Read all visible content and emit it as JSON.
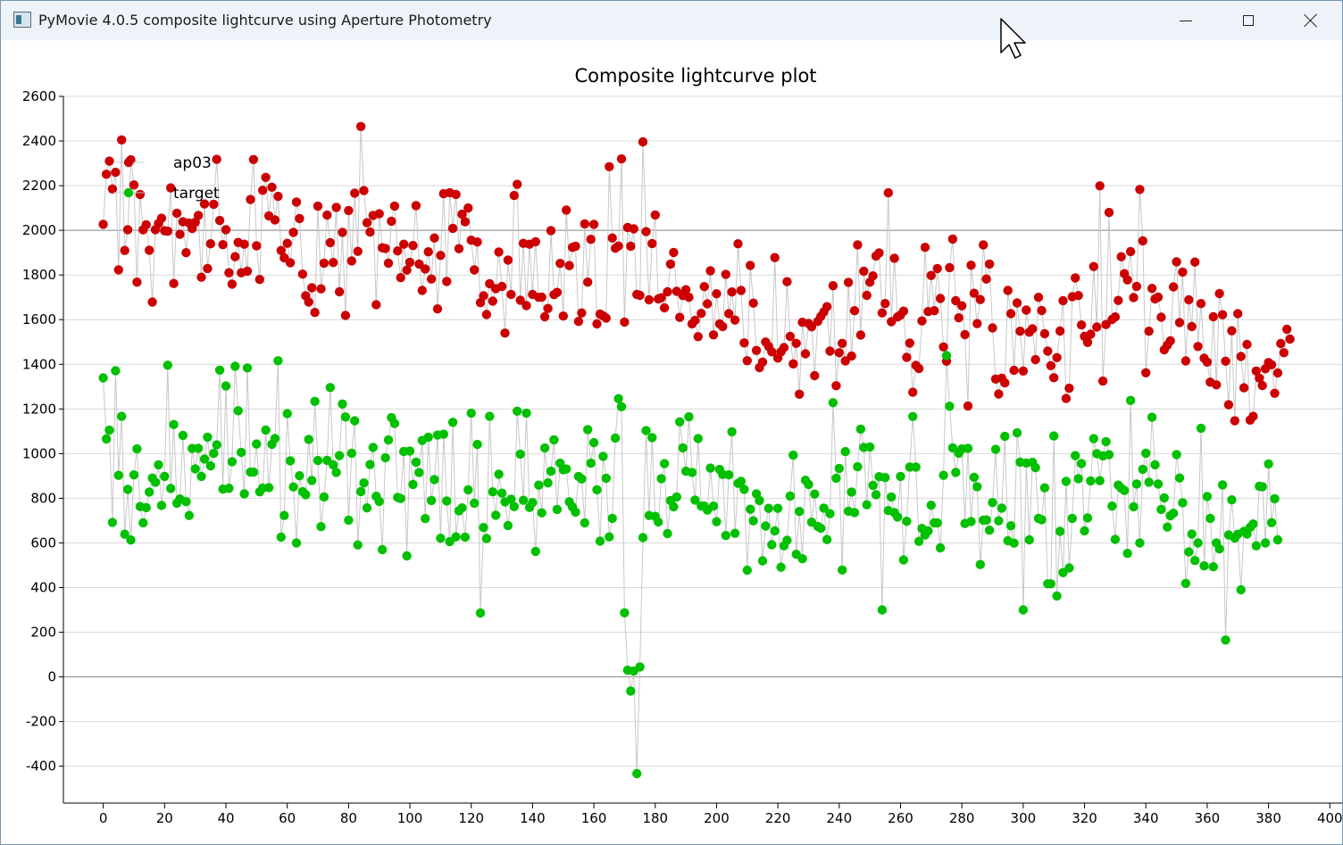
{
  "window": {
    "title": "PyMovie 4.0.5 composite lightcurve using Aperture Photometry",
    "icon": "app-icon",
    "controls": {
      "minimize": "minimize-icon",
      "maximize": "maximize-icon",
      "close": "close-icon"
    }
  },
  "chart_data": {
    "type": "scatter",
    "title": "Composite lightcurve plot",
    "xlabel": "",
    "ylabel": "",
    "xlim": [
      -13,
      404
    ],
    "ylim": [
      -565,
      2600
    ],
    "x_ticks": [
      "0",
      "20",
      "40",
      "60",
      "80",
      "100",
      "120",
      "140",
      "160",
      "180",
      "200",
      "220",
      "240",
      "260",
      "280",
      "300",
      "320",
      "340",
      "360",
      "380",
      "400"
    ],
    "y_ticks": [
      "-400",
      "-200",
      "0",
      "200",
      "400",
      "600",
      "800",
      "1000",
      "1200",
      "1400",
      "1600",
      "1800",
      "2000",
      "2200",
      "2400",
      "2600"
    ],
    "grid": true,
    "connect_points": true,
    "legend_placement": "top-left",
    "reference_lines": [
      0,
      2000
    ],
    "colors": {
      "ap03": "#cc0000",
      "target": "#00c000",
      "connector": "#c8c8c8",
      "grid": "#d9d9d9",
      "axis": "#000000"
    },
    "series": [
      {
        "name": "ap03",
        "color": "#cc0000",
        "x_start": 0,
        "values": [
          2027,
          2251,
          2310,
          2185,
          2260,
          1823,
          2405,
          1910,
          2003,
          2316,
          2203,
          1768,
          2161,
          2002,
          2025,
          1911,
          1679,
          2003,
          2031,
          2054,
          1998,
          1996,
          2190,
          1762,
          2077,
          1982,
          2039,
          1900,
          2033,
          2008,
          2036,
          2067,
          1790,
          2118,
          1829,
          1940,
          2117,
          2318,
          2044,
          1936,
          2003,
          1810,
          1759,
          1882,
          1946,
          1810,
          1938,
          1817,
          2138,
          2317,
          1931,
          1780,
          2179,
          2237,
          2065,
          2193,
          2047,
          2152,
          1910,
          1877,
          1942,
          1855,
          1991,
          2127,
          2053,
          1804,
          1707,
          1679,
          1743,
          1632,
          2108,
          1738,
          1853,
          2068,
          1945,
          1856,
          2103,
          1725,
          1991,
          1619,
          2089,
          1863,
          2167,
          1906,
          2465,
          2178,
          2034,
          1992,
          2067,
          1667,
          2074,
          1922,
          1919,
          1853,
          2041,
          2109,
          1908,
          1788,
          1938,
          1822,
          1857,
          1932,
          2111,
          1849,
          1731,
          1827,
          1904,
          1782,
          1966,
          1648,
          1888,
          2164,
          1771,
          2169,
          2009,
          2161,
          1918,
          2072,
          2038,
          2100,
          1956,
          1823,
          1948,
          1676,
          1707,
          1623,
          1761,
          1683,
          1739,
          1903,
          1749,
          1540,
          1867,
          1713,
          2156,
          2206,
          1687,
          1942,
          1663,
          1938,
          1713,
          1949,
          1700,
          1701,
          1613,
          1650,
          1999,
          1712,
          1722,
          1852,
          1616,
          2091,
          1842,
          1924,
          1929,
          1592,
          1630,
          2029,
          1768,
          1960,
          2027,
          1581,
          1625,
          1617,
          1607,
          2285,
          1966,
          1920,
          1930,
          2320,
          1589,
          2013,
          1929,
          2007,
          1713,
          1709,
          2396,
          1994,
          1689,
          1941,
          2069,
          1693,
          1698,
          1653,
          1725,
          1849,
          1901,
          1727,
          1610,
          1708,
          1734,
          1700,
          1581,
          1597,
          1524,
          1628,
          1748,
          1671,
          1819,
          1532,
          1716,
          1581,
          1569,
          1803,
          1627,
          1724,
          1598,
          1940,
          1731,
          1496,
          1416,
          1843,
          1674,
          1462,
          1385,
          1410,
          1500,
          1480,
          1456,
          1878,
          1428,
          1456,
          1475,
          1770,
          1525,
          1402,
          1494,
          1266,
          1588,
          1447,
          1583,
          1568,
          1349,
          1592,
          1614,
          1635,
          1658,
          1459,
          1752,
          1304,
          1452,
          1494,
          1415,
          1767,
          1437,
          1640,
          1935,
          1531,
          1817,
          1709,
          1768,
          1796,
          1885,
          1899,
          1630,
          1672,
          2168,
          1591,
          1875,
          1612,
          1621,
          1638,
          1431,
          1495,
          1275,
          1395,
          1381,
          1594,
          1924,
          1636,
          1798,
          1640,
          1829,
          1695,
          1478,
          1414,
          1833,
          1961,
          1685,
          1608,
          1662,
          1533,
          1213,
          1844,
          1718,
          1582,
          1690,
          1935,
          1782,
          1849,
          1563,
          1334,
          1267,
          1338,
          1317,
          1731,
          1627,
          1373,
          1675,
          1548,
          1370,
          1643,
          1544,
          1559,
          1421,
          1700,
          1641,
          1537,
          1459,
          1394,
          1340,
          1430,
          1549,
          1685,
          1247,
          1293,
          1703,
          1787,
          1708,
          1576,
          1525,
          1498,
          1535,
          1838,
          1567,
          2199,
          1325,
          1578,
          2080,
          1601,
          1612,
          1686,
          1882,
          1806,
          1778,
          1905,
          1699,
          1749,
          2183,
          1953,
          1362,
          1548,
          1740,
          1693,
          1701,
          1611,
          1465,
          1486,
          1505,
          1747,
          1859,
          1587,
          1813,
          1415,
          1689,
          1569,
          1858,
          1480,
          1672,
          1427,
          1410,
          1320,
          1613,
          1308,
          1717,
          1622,
          1414,
          1219,
          1550,
          1147,
          1627,
          1435,
          1295,
          1489,
          1150,
          1167,
          1370,
          1338,
          1305,
          1380,
          1408,
          1398,
          1270,
          1361,
          1493,
          1452,
          1557,
          1513
        ]
      },
      {
        "name": "target",
        "color": "#00c000",
        "x_start": 0,
        "values": [
          1339,
          1066,
          1105,
          692,
          1371,
          903,
          1167,
          639,
          840,
          613,
          905,
          1021,
          763,
          690,
          758,
          828,
          891,
          872,
          950,
          768,
          898,
          1396,
          844,
          1130,
          778,
          797,
          1082,
          785,
          723,
          1023,
          932,
          1024,
          898,
          976,
          1074,
          945,
          1001,
          1039,
          1374,
          841,
          1303,
          845,
          964,
          1391,
          1192,
          1006,
          820,
          1384,
          917,
          917,
          1043,
          829,
          846,
          1106,
          848,
          1042,
          1068,
          1416,
          626,
          723,
          1179,
          968,
          851,
          600,
          901,
          830,
          816,
          1064,
          880,
          1234,
          969,
          673,
          806,
          970,
          1296,
          950,
          916,
          991,
          1222,
          1164,
          702,
          1002,
          1147,
          591,
          830,
          869,
          757,
          951,
          1028,
          809,
          786,
          570,
          981,
          1061,
          1161,
          1135,
          804,
          799,
          1010,
          542,
          1012,
          862,
          962,
          915,
          1059,
          709,
          1074,
          790,
          884,
          1083,
          621,
          1087,
          788,
          606,
          1140,
          627,
          744,
          757,
          626,
          838,
          1181,
          778,
          1041,
          286,
          669,
          620,
          1167,
          829,
          724,
          908,
          823,
          784,
          678,
          796,
          763,
          1190,
          998,
          791,
          1181,
          759,
          781,
          562,
          859,
          735,
          1025,
          869,
          921,
          1062,
          750,
          957,
          928,
          931,
          784,
          761,
          738,
          898,
          887,
          690,
          1108,
          957,
          1049,
          838,
          608,
          988,
          890,
          627,
          710,
          1070,
          1246,
          1210,
          287,
          30,
          -63,
          26,
          -433,
          45,
          624,
          1103,
          723,
          1072,
          719,
          694,
          888,
          955,
          642,
          790,
          762,
          806,
          1142,
          1026,
          921,
          1165,
          916,
          792,
          1068,
          765,
          765,
          747,
          935,
          765,
          695,
          929,
          907,
          633,
          905,
          1098,
          643,
          867,
          876,
          840,
          478,
          751,
          699,
          820,
          790,
          520,
          676,
          755,
          592,
          654,
          755,
          491,
          587,
          612,
          810,
          993,
          549,
          741,
          529,
          881,
          862,
          693,
          819,
          674,
          666,
          756,
          615,
          731,
          1228,
          890,
          934,
          479,
          1009,
          742,
          828,
          736,
          941,
          1110,
          1028,
          771,
          1030,
          858,
          816,
          897,
          300,
          893,
          745,
          806,
          736,
          716,
          898,
          524,
          697,
          940,
          1166,
          940,
          607,
          665,
          636,
          654,
          769,
          690,
          690,
          578,
          903,
          1439,
          1212,
          1026,
          916,
          1002,
          1021,
          687,
          1024,
          696,
          894,
          852,
          503,
          702,
          703,
          657,
          781,
          1019,
          699,
          756,
          1078,
          610,
          677,
          599,
          1093,
          962,
          300,
          958,
          614,
          961,
          937,
          710,
          704,
          847,
          417,
          417,
          1079,
          362,
          652,
          467,
          876,
          488,
          710,
          991,
          888,
          956,
          654,
          712,
          878,
          1067,
          1000,
          879,
          990,
          1054,
          995,
          765,
          616,
          859,
          845,
          835,
          553,
          1238,
          762,
          864,
          600,
          930,
          1002,
          872,
          1163,
          950,
          864,
          750,
          802,
          671,
          722,
          733,
          996,
          891,
          780,
          419,
          560,
          640,
          521,
          600,
          1114,
          497,
          808,
          710,
          493,
          600,
          573,
          860,
          165,
          636,
          793,
          622,
          639,
          390,
          652,
          640,
          670,
          685,
          587,
          854,
          852,
          600,
          954,
          691,
          798,
          614
        ]
      }
    ]
  }
}
